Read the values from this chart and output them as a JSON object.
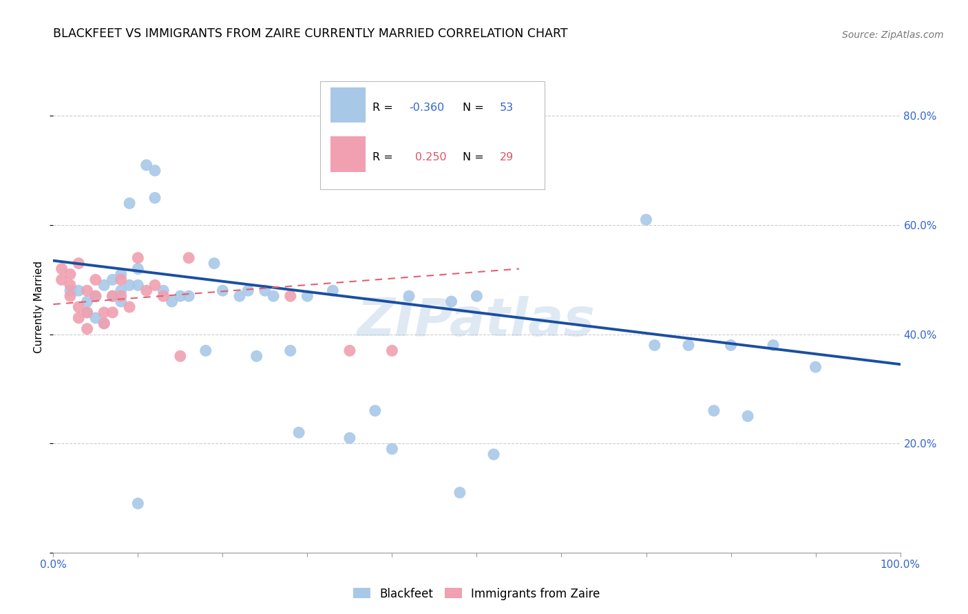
{
  "title": "BLACKFEET VS IMMIGRANTS FROM ZAIRE CURRENTLY MARRIED CORRELATION CHART",
  "source": "Source: ZipAtlas.com",
  "ylabel": "Currently Married",
  "x_min": 0.0,
  "x_max": 1.0,
  "y_min": 0.0,
  "y_max": 0.9,
  "x_ticks": [
    0.0,
    0.1,
    0.2,
    0.3,
    0.4,
    0.5,
    0.6,
    0.7,
    0.8,
    0.9,
    1.0
  ],
  "y_ticks": [
    0.0,
    0.2,
    0.4,
    0.6,
    0.8
  ],
  "y_tick_labels_right": [
    "",
    "20.0%",
    "40.0%",
    "60.0%",
    "80.0%"
  ],
  "grid_color": "#cccccc",
  "background_color": "#ffffff",
  "blue_color": "#a8c8e8",
  "blue_line_color": "#1a4fa0",
  "pink_color": "#f0a0b0",
  "pink_line_color": "#e06070",
  "legend_R1": "-0.360",
  "legend_N1": "53",
  "legend_R2": "0.250",
  "legend_N2": "29",
  "watermark": "ZIPatlas",
  "blue_x": [
    0.02,
    0.03,
    0.04,
    0.04,
    0.05,
    0.05,
    0.06,
    0.06,
    0.07,
    0.07,
    0.08,
    0.08,
    0.08,
    0.09,
    0.09,
    0.1,
    0.1,
    0.11,
    0.12,
    0.12,
    0.13,
    0.14,
    0.15,
    0.16,
    0.18,
    0.19,
    0.2,
    0.22,
    0.23,
    0.24,
    0.25,
    0.26,
    0.28,
    0.29,
    0.3,
    0.33,
    0.35,
    0.38,
    0.4,
    0.42,
    0.47,
    0.48,
    0.5,
    0.52,
    0.7,
    0.71,
    0.75,
    0.78,
    0.8,
    0.82,
    0.85,
    0.9,
    0.1
  ],
  "blue_y": [
    0.48,
    0.48,
    0.46,
    0.44,
    0.47,
    0.43,
    0.49,
    0.42,
    0.5,
    0.47,
    0.48,
    0.46,
    0.51,
    0.64,
    0.49,
    0.49,
    0.52,
    0.71,
    0.7,
    0.65,
    0.48,
    0.46,
    0.47,
    0.47,
    0.37,
    0.53,
    0.48,
    0.47,
    0.48,
    0.36,
    0.48,
    0.47,
    0.37,
    0.22,
    0.47,
    0.48,
    0.21,
    0.26,
    0.19,
    0.47,
    0.46,
    0.11,
    0.47,
    0.18,
    0.61,
    0.38,
    0.38,
    0.26,
    0.38,
    0.25,
    0.38,
    0.34,
    0.09
  ],
  "pink_x": [
    0.01,
    0.01,
    0.02,
    0.02,
    0.02,
    0.03,
    0.03,
    0.03,
    0.04,
    0.04,
    0.04,
    0.05,
    0.05,
    0.06,
    0.06,
    0.07,
    0.07,
    0.08,
    0.08,
    0.09,
    0.1,
    0.11,
    0.12,
    0.13,
    0.15,
    0.16,
    0.28,
    0.35,
    0.4
  ],
  "pink_y": [
    0.52,
    0.5,
    0.51,
    0.49,
    0.47,
    0.53,
    0.45,
    0.43,
    0.48,
    0.44,
    0.41,
    0.5,
    0.47,
    0.44,
    0.42,
    0.47,
    0.44,
    0.5,
    0.47,
    0.45,
    0.54,
    0.48,
    0.49,
    0.47,
    0.36,
    0.54,
    0.47,
    0.37,
    0.37
  ],
  "blue_line_x": [
    0.0,
    1.0
  ],
  "blue_line_y_start": 0.535,
  "blue_line_y_end": 0.345,
  "pink_line_x": [
    0.0,
    0.55
  ],
  "pink_line_y_start": 0.455,
  "pink_line_y_end": 0.52
}
